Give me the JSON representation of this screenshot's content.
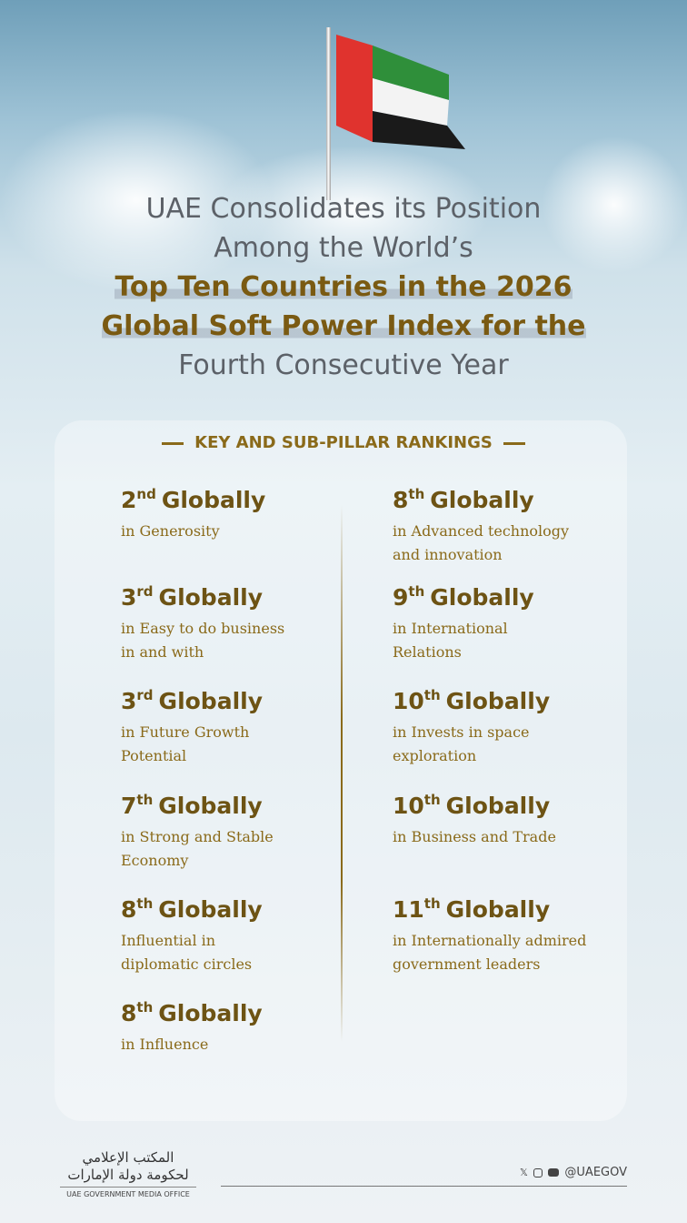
{
  "header": {
    "title_line1": "UAE Consolidates its Position",
    "title_line2": "Among the World’s",
    "title_line3": "Top Ten Countries in the 2026",
    "title_line4": "Global Soft Power Index for the",
    "title_line5": "Fourth Consecutive Year"
  },
  "section_title": "KEY AND SUB-PILLAR RANKINGS",
  "rankings": {
    "left": [
      {
        "num": "2",
        "suffix": "nd",
        "word": "Globally",
        "desc1": "in Generosity",
        "desc2": ""
      },
      {
        "num": "3",
        "suffix": "rd",
        "word": "Globally",
        "desc1": "in Easy to do business",
        "desc2": "in and with"
      },
      {
        "num": "3",
        "suffix": "rd",
        "word": "Globally",
        "desc1": "in Future Growth",
        "desc2": "Potential"
      },
      {
        "num": "7",
        "suffix": "th",
        "word": "Globally",
        "desc1": "in Strong and Stable",
        "desc2": "Economy"
      },
      {
        "num": "8",
        "suffix": "th",
        "word": "Globally",
        "desc1": "Influential in",
        "desc2": "diplomatic circles"
      },
      {
        "num": "8",
        "suffix": "th",
        "word": "Globally",
        "desc1": " in Influence",
        "desc2": ""
      }
    ],
    "right": [
      {
        "num": "8",
        "suffix": "th",
        "word": "Globally",
        "desc1": "in Advanced technology",
        "desc2": "and innovation"
      },
      {
        "num": "9",
        "suffix": "th",
        "word": "Globally",
        "desc1": "in International",
        "desc2": "Relations"
      },
      {
        "num": "10",
        "suffix": "th",
        "word": "Globally",
        "desc1": "in Invests in space",
        "desc2": "exploration"
      },
      {
        "num": "10",
        "suffix": "th",
        "word": "Globally",
        "desc1": "in Business and Trade",
        "desc2": ""
      },
      {
        "num": "11",
        "suffix": "th",
        "word": "Globally",
        "desc1": "in Internationally admired",
        "desc2": "government leaders"
      }
    ]
  },
  "footer": {
    "logo_arabic_line1": "المكتب الإعلامي",
    "logo_arabic_line2": "لحكومة دولة الإمارات",
    "logo_english": "UAE GOVERNMENT MEDIA OFFICE",
    "social_icons": [
      "x-icon",
      "instagram-icon",
      "youtube-icon"
    ],
    "handle": "@UAEGOV"
  },
  "colors": {
    "gold": "#7a5a12",
    "gray_text": "#5c6168",
    "flag_red": "#e0332e",
    "flag_green": "#2f8f3a",
    "flag_black": "#1a1a1a"
  }
}
